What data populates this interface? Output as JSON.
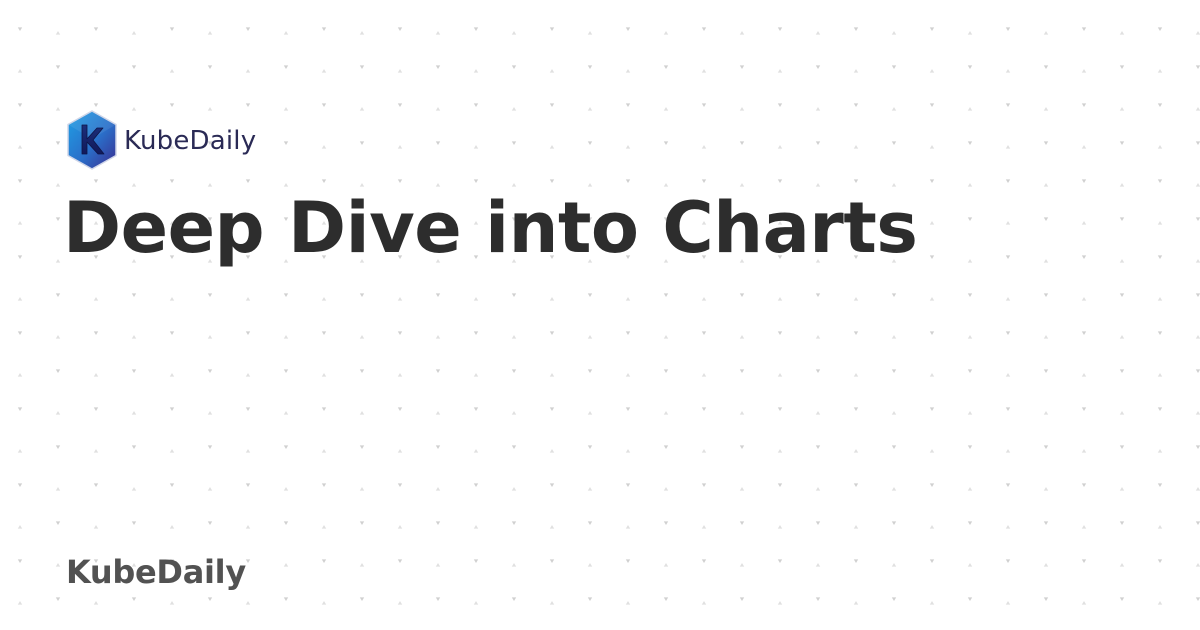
{
  "brand": {
    "logo_text": "KubeDaily",
    "logo_icon": "kubedaily-k-hexagon-icon",
    "colors": {
      "logo_gradient_start": "#1fa1e6",
      "logo_gradient_end": "#3a2b8f",
      "logo_text": "#2a2a55"
    }
  },
  "hero": {
    "title": "Deep Dive into Charts",
    "color": "#2d2d2d"
  },
  "footer": {
    "brand": "KubeDaily",
    "color": "#525252"
  },
  "background": {
    "color": "#ffffff",
    "pattern": "dotted-triangles",
    "pattern_color": "#cfcfcf"
  }
}
